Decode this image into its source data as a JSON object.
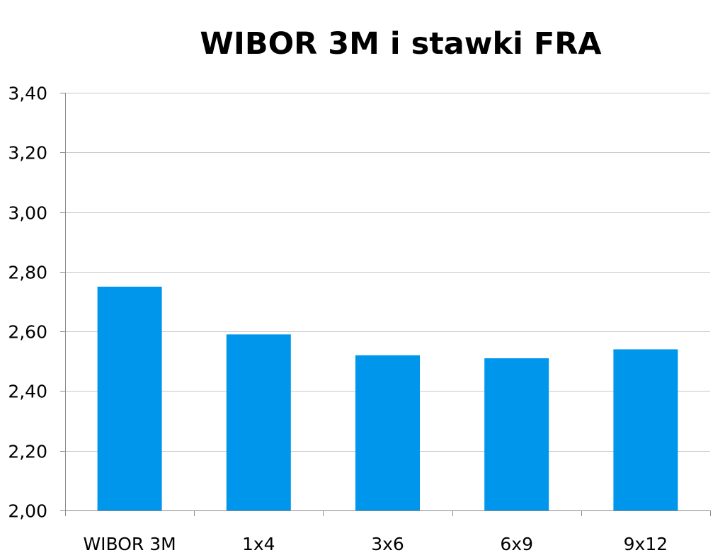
{
  "chart_data": {
    "type": "bar",
    "title": "WIBOR 3M i stawki FRA",
    "xlabel": "",
    "ylabel": "",
    "categories": [
      "WIBOR 3M",
      "1x4",
      "3x6",
      "6x9",
      "9x12"
    ],
    "values": [
      2.75,
      2.59,
      2.52,
      2.51,
      2.54
    ],
    "ylim": [
      2.0,
      3.4
    ],
    "y_ticks": [
      "2,00",
      "2,20",
      "2,40",
      "2,60",
      "2,80",
      "3,00",
      "3,20",
      "3,40"
    ],
    "grid": true,
    "legend": "none",
    "colors": {
      "bar": "#0096EC",
      "grid": "#C8C8C8",
      "axis": "#8C8C8C"
    }
  }
}
